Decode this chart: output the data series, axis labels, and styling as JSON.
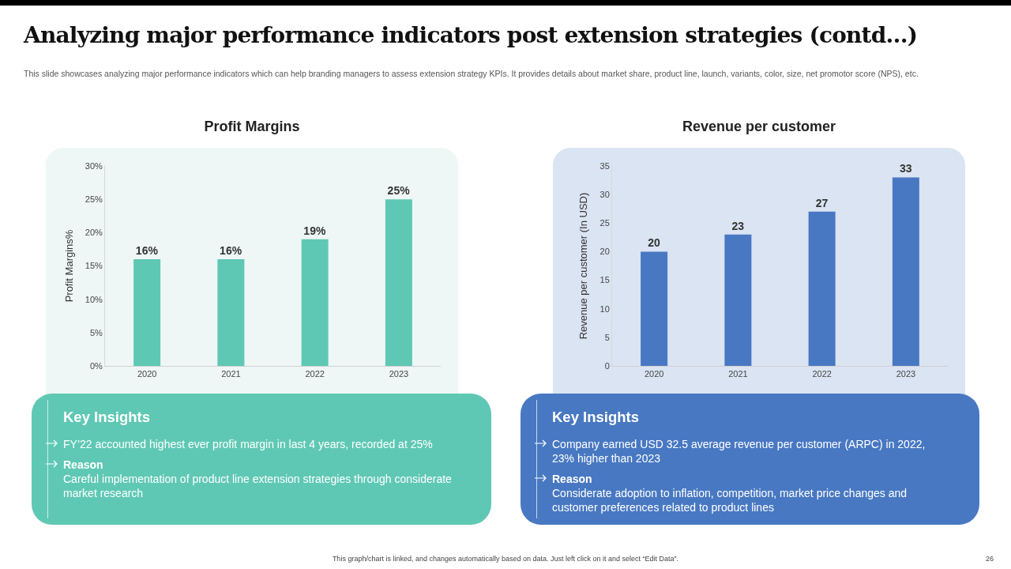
{
  "chart_data": [
    {
      "type": "other",
      "title": "Analyzing major performance indicators post extension strategies (contd…)",
      "subtitle": "This slide showcases analyzing major performance indicators which can help branding managers to assess extension strategy KPIs. It provides details about market share, product line, launch, variants, color, size, net promotor score (NPS), etc."
    },
    {
      "type": "bar",
      "title": "Profit Margins",
      "ylabel": "Profit Margins%",
      "categories": [
        "2020",
        "2021",
        "2022",
        "2023"
      ],
      "values": [
        16,
        16,
        19,
        25
      ],
      "value_labels": [
        "16%",
        "16%",
        "19%",
        "25%"
      ],
      "color": "#5fc8b4",
      "ylim": [
        0,
        30
      ],
      "yticks": [
        {
          "value": 0,
          "label": "0%"
        },
        {
          "value": 5,
          "label": "5%"
        },
        {
          "value": 10,
          "label": "10%"
        },
        {
          "value": 15,
          "label": "15%"
        },
        {
          "value": 20,
          "label": "20%"
        },
        {
          "value": 25,
          "label": "25%"
        },
        {
          "value": 30,
          "label": "30%"
        }
      ]
    },
    {
      "type": "bar",
      "title": "Revenue per customer",
      "ylabel": "Revenue per customer (In USD)",
      "categories": [
        "2020",
        "2021",
        "2022",
        "2023"
      ],
      "values": [
        20,
        23,
        27,
        33
      ],
      "data_labels": true,
      "color": "#4878c2",
      "ylim": [
        0,
        35
      ],
      "yticks": [
        0,
        5,
        10,
        15,
        20,
        25,
        30,
        35
      ]
    },
    {
      "type": "other",
      "title": "Key Insights",
      "annotations": [
        "FY’22 accounted highest ever profit margin in last 4 years, recorded at 25%",
        "Reason",
        "Careful implementation of product line extension strategies through considerate market research"
      ]
    },
    {
      "type": "other",
      "title": "Key Insights",
      "annotations": [
        "Company earned USD 32.5 average revenue per customer (ARPC) in 2022, 23% higher than 2023",
        "Reason",
        "Considerate adoption to inflation, competition, market price changes and customer preferences related to product lines"
      ]
    },
    {
      "type": "other",
      "annotations": [
        "This graph/chart is linked, and changes automatically based on data. Just left click on it and select “Edit Data”.",
        "26"
      ]
    }
  ]
}
